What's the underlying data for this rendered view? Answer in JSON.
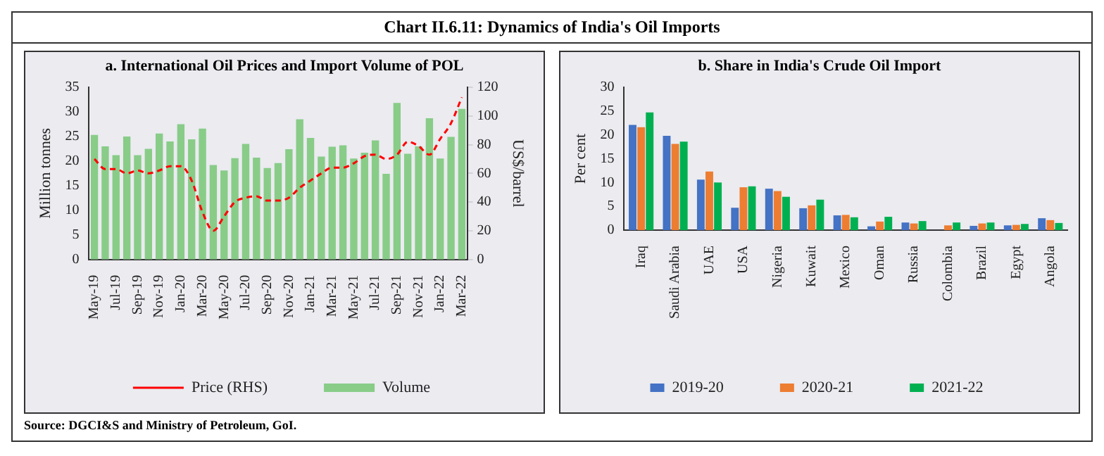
{
  "chart_data": [
    {
      "type": "bar",
      "title": "Chart II.6.11: Dynamics of India's Oil Imports",
      "subtitle": "a. International Oil Prices and Import Volume of POL",
      "ylabel": "Million tonnes",
      "y2label": "US$/barrel",
      "categories": [
        "May-19",
        null,
        "Jul-19",
        null,
        "Sep-19",
        null,
        "Nov-19",
        null,
        "Jan-20",
        null,
        "Mar-20",
        null,
        "May-20",
        null,
        "Jul-20",
        null,
        "Sep-20",
        null,
        "Nov-20",
        null,
        "Jan-21",
        null,
        "Mar-21",
        null,
        "May-21",
        null,
        "Jul-21",
        null,
        "Sep-21",
        null,
        "Nov-21",
        null,
        "Jan-22",
        null,
        "Mar-22"
      ],
      "series": [
        {
          "name": "Volume",
          "color": "#88cc88",
          "values": [
            25.3,
            23,
            21.2,
            25,
            21.2,
            22.5,
            25.6,
            24,
            27.5,
            24.4,
            26.6,
            19.2,
            18.1,
            20.6,
            23.5,
            20.7,
            18.6,
            19.6,
            22.4,
            28.5,
            24.7,
            20.9,
            22.9,
            23.2,
            20.5,
            21.7,
            24.2,
            17.4,
            31.8,
            21.5,
            23,
            28.7,
            20.5,
            24.9,
            30.6
          ]
        },
        {
          "name": "Price (RHS)",
          "type": "line",
          "axis": "y2",
          "color": "#ff0000",
          "line_style": "dashed",
          "marker": "none",
          "values": [
            70,
            63,
            63,
            60,
            62,
            60,
            62,
            65,
            65,
            55,
            33,
            20,
            30,
            40,
            43,
            44,
            41,
            41,
            43,
            50,
            55,
            60,
            64,
            64,
            67,
            72,
            73,
            70,
            73,
            82,
            79,
            73,
            84,
            95,
            113
          ]
        }
      ],
      "ylim": [
        0,
        35
      ],
      "yticks": [
        0,
        5,
        10,
        15,
        20,
        25,
        30,
        35
      ],
      "y2lim": [
        0,
        120
      ],
      "y2ticks": [
        0,
        20,
        40,
        60,
        80,
        100,
        120
      ],
      "grid": false,
      "legend": "bottom"
    },
    {
      "type": "bar",
      "title": "b. Share in India's Crude Oil Import",
      "ylabel": "Per cent",
      "categories": [
        "Iraq",
        "Saudi Arabia",
        "UAE",
        "USA",
        "Nigeria",
        "Kuwait",
        "Mexico",
        "Oman",
        "Russia",
        "Colombia",
        "Brazil",
        "Egypt",
        "Angola"
      ],
      "series": [
        {
          "name": "2019-20",
          "color": "#4472c4",
          "values": [
            22.1,
            19.8,
            10.6,
            4.7,
            8.7,
            4.6,
            3.1,
            0.8,
            1.6,
            null,
            0.9,
            1.0,
            2.5
          ]
        },
        {
          "name": "2020-21",
          "color": "#ed7d31",
          "values": [
            21.6,
            18.1,
            12.3,
            9.0,
            8.2,
            5.2,
            3.2,
            1.8,
            1.4,
            1.0,
            1.4,
            1.1,
            2.1
          ]
        },
        {
          "name": "2021-22",
          "color": "#00b050",
          "values": [
            24.7,
            18.6,
            10.0,
            9.2,
            7.0,
            6.4,
            2.7,
            2.8,
            1.9,
            1.6,
            1.6,
            1.3,
            1.5
          ]
        }
      ],
      "ylim": [
        0,
        30
      ],
      "yticks": [
        0,
        5,
        10,
        15,
        20,
        25,
        30
      ],
      "grid": false,
      "legend": "bottom",
      "annotations": [
        "Source: DGCI&S and Ministry of Petroleum, GoI."
      ]
    }
  ]
}
